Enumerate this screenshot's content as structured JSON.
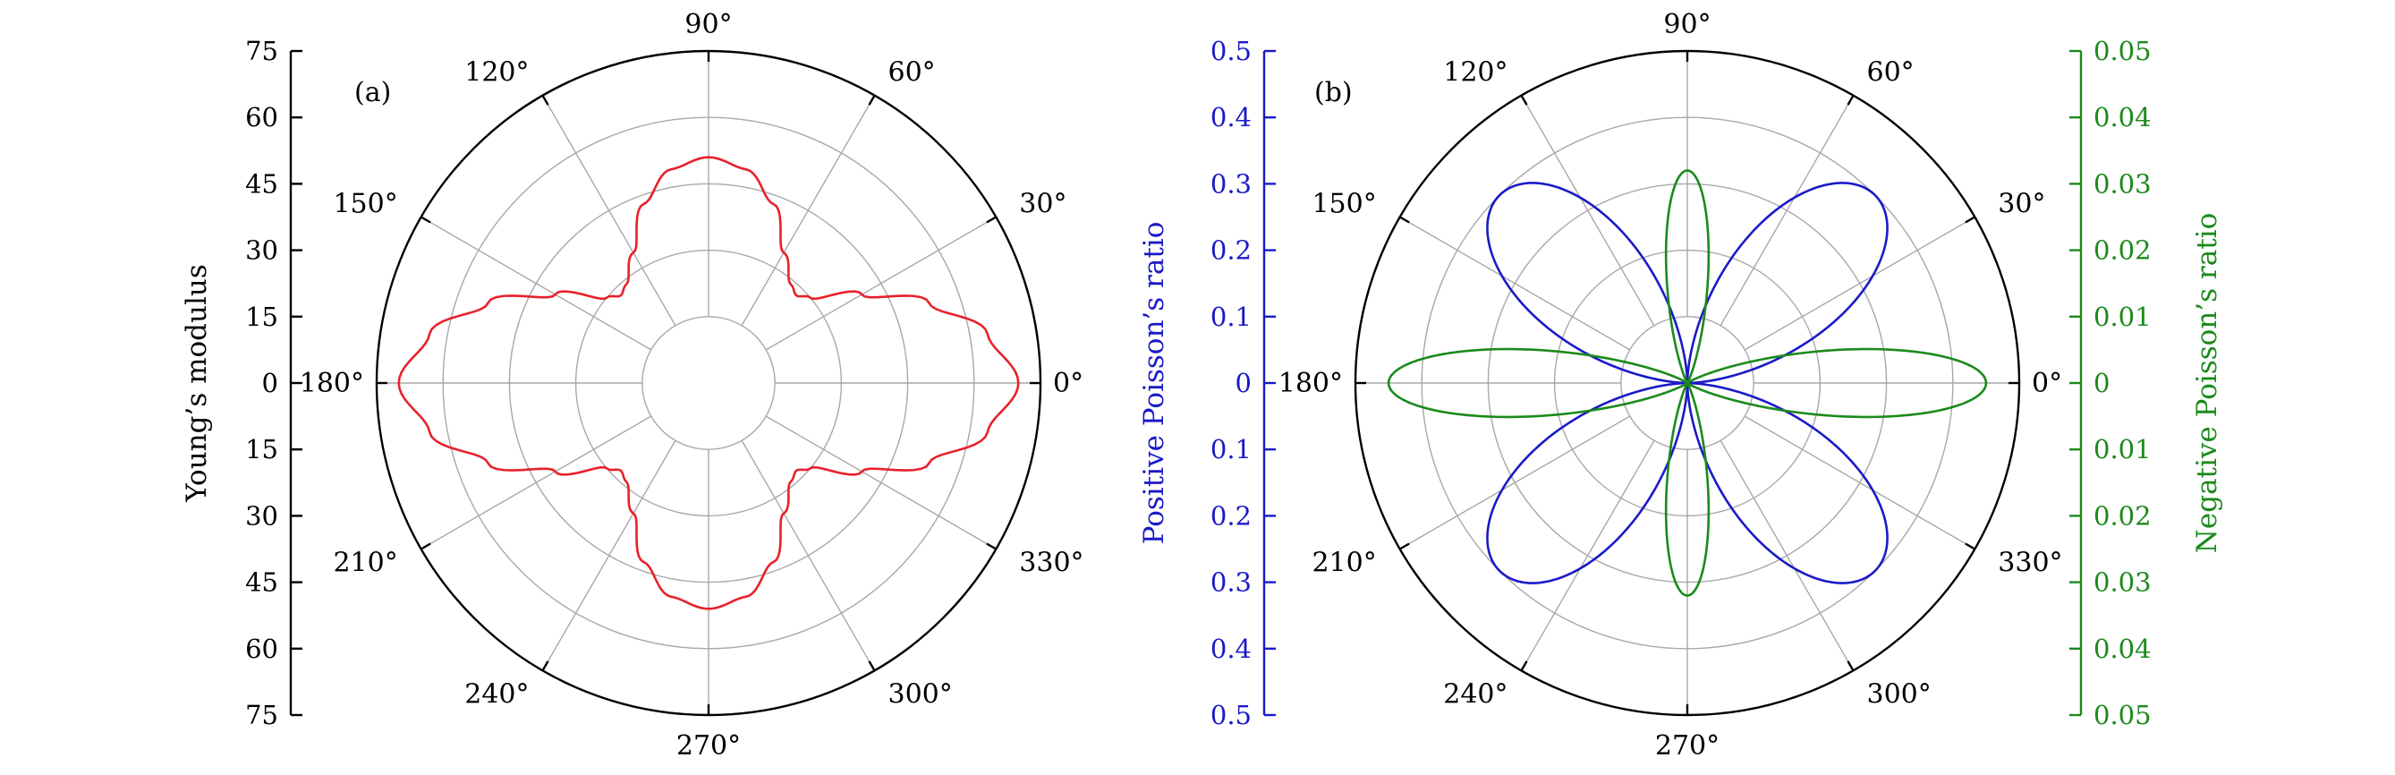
{
  "chart_data": [
    {
      "type": "polar-line",
      "panel_label": "(a)",
      "angle_labels": [
        "0°",
        "30°",
        "60°",
        "90°",
        "120°",
        "150°",
        "180°",
        "210°",
        "240°",
        "270°",
        "300°",
        "330°"
      ],
      "radial_axis": {
        "title": "Young’s modulus",
        "range": [
          0,
          75
        ],
        "ticks": [
          "75",
          "60",
          "45",
          "30",
          "15",
          "0",
          "15",
          "30",
          "45",
          "60",
          "75"
        ],
        "color": "#000000"
      },
      "grid": true,
      "series": [
        {
          "color": "#e8212b",
          "theta_deg": [
            0,
            10,
            20,
            30,
            40,
            45,
            50,
            60,
            70,
            80,
            90
          ],
          "r": [
            70,
            64,
            53,
            40,
            30,
            28,
            29,
            34,
            43,
            49,
            51
          ]
        }
      ]
    },
    {
      "type": "polar-line",
      "panel_label": "(b)",
      "angle_labels": [
        "0°",
        "30°",
        "60°",
        "90°",
        "120°",
        "150°",
        "180°",
        "210°",
        "240°",
        "270°",
        "300°",
        "330°"
      ],
      "radial_axis_left": {
        "title": "Positive Poisson’s ratio",
        "range": [
          0,
          0.5
        ],
        "ticks": [
          "0.5",
          "0.4",
          "0.3",
          "0.2",
          "0.1",
          "0",
          "0.1",
          "0.2",
          "0.3",
          "0.4",
          "0.5"
        ],
        "color": "#1a1ac8"
      },
      "radial_axis_right": {
        "title": "Negative Poisson’s ratio",
        "range": [
          0,
          0.05
        ],
        "ticks": [
          "0.05",
          "0.04",
          "0.03",
          "0.02",
          "0.01",
          "0",
          "0.01",
          "0.02",
          "0.03",
          "0.04",
          "0.05"
        ],
        "color": "#1b8a1b"
      },
      "grid": true,
      "series": [
        {
          "axis": "left",
          "color": "#1a1ac8",
          "shape": "four lobes at 45°, 135°, 225°, 315°",
          "peak_value": 0.4
        },
        {
          "axis": "right",
          "color": "#1b8a1b",
          "shape": "four narrow lobes at 0°, 90°, 180°, 270°",
          "peak_values": {
            "0": 0.045,
            "90": 0.032
          }
        }
      ]
    }
  ]
}
